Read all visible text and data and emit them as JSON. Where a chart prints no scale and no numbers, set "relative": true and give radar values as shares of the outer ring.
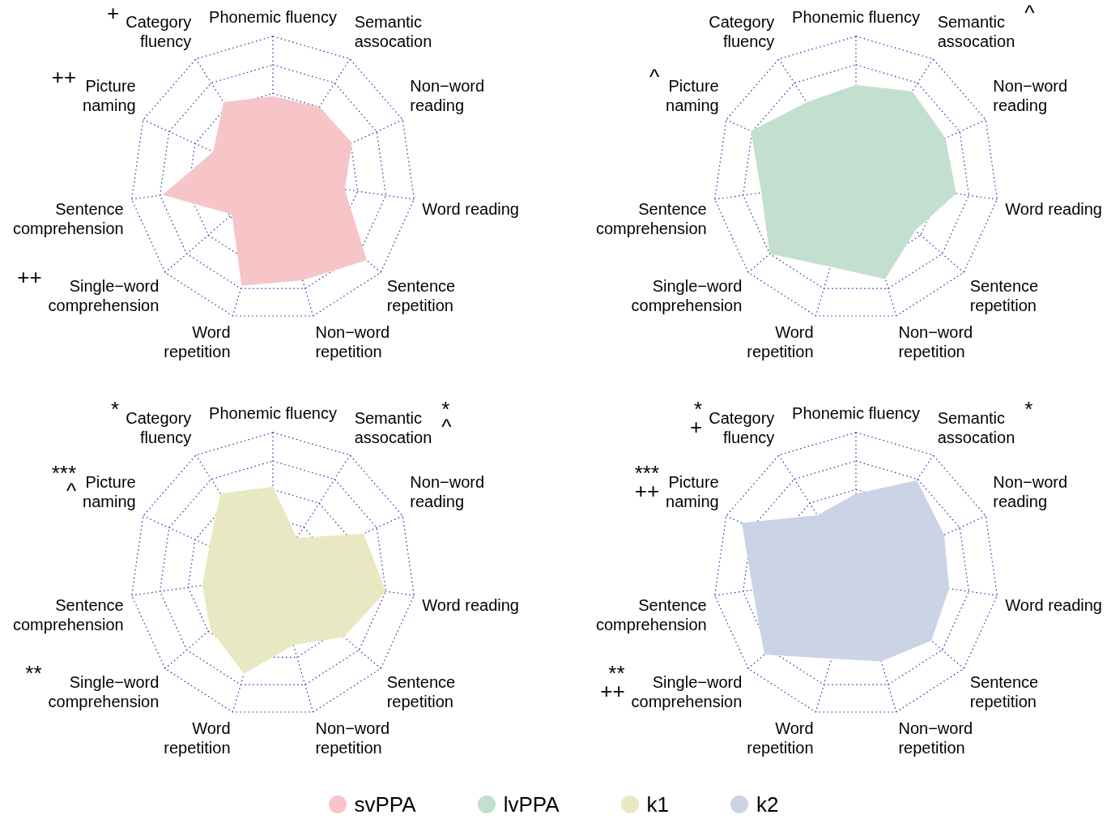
{
  "chart_data": [
    {
      "type": "radar",
      "relative": true,
      "legend": "bottom",
      "marker": "none",
      "grid": true,
      "categories": [
        "Phonemic fluency",
        "Semantic\nassocation",
        "Non−word\nreading",
        "Word reading",
        "Sentence\nrepetition",
        "Non−word\nrepetition",
        "Word\nrepetition",
        "Single−word\ncomprehension",
        "Sentence\ncomprehension",
        "Picture\nnaming",
        "Category\nfluency"
      ],
      "series": [
        {
          "name": "svPPA",
          "color": "#f7c5c7",
          "values": [
            0.58,
            0.6,
            0.61,
            0.51,
            0.87,
            0.74,
            0.78,
            0.38,
            0.78,
            0.46,
            0.64
          ]
        }
      ],
      "annotations": [
        {
          "text": "+",
          "x": "Category\nfluency"
        },
        {
          "text": "++",
          "x": "Picture\nnaming"
        },
        {
          "text": "++",
          "x": "Single−word\ncomprehension"
        }
      ]
    },
    {
      "type": "radar",
      "relative": true,
      "legend": "bottom",
      "marker": "none",
      "grid": true,
      "categories": [
        "Phonemic fluency",
        "Semantic\nassocation",
        "Non−word\nreading",
        "Word reading",
        "Sentence\nrepetition",
        "Non−word\nrepetition",
        "Word\nrepetition",
        "Single−word\ncomprehension",
        "Sentence\ncomprehension",
        "Picture\nnaming",
        "Category\nfluency"
      ],
      "series": [
        {
          "name": "lvPPA",
          "color": "#c3dfd0",
          "values": [
            0.66,
            0.73,
            0.69,
            0.71,
            0.55,
            0.73,
            0.64,
            0.8,
            0.67,
            0.81,
            0.64
          ]
        }
      ],
      "annotations": [
        {
          "text": "^",
          "x": "Semantic\nassocation"
        },
        {
          "text": "^",
          "x": "Picture\nnaming"
        }
      ]
    },
    {
      "type": "radar",
      "relative": true,
      "legend": "bottom",
      "marker": "none",
      "grid": true,
      "categories": [
        "Phonemic fluency",
        "Semantic\nassocation",
        "Non−word\nreading",
        "Word reading",
        "Sentence\nrepetition",
        "Non−word\nrepetition",
        "Word\nrepetition",
        "Single−word\ncomprehension",
        "Sentence\ncomprehension",
        "Picture\nnaming",
        "Category\nfluency"
      ],
      "series": [
        {
          "name": "k1",
          "color": "#e8e9c2",
          "values": [
            0.62,
            0.31,
            0.7,
            0.8,
            0.66,
            0.51,
            0.72,
            0.58,
            0.5,
            0.49,
            0.68
          ]
        }
      ],
      "annotations": [
        {
          "text": "*",
          "x": "Category\nfluency"
        },
        {
          "text": "*",
          "x": "Semantic\nassocation"
        },
        {
          "text": "^",
          "x": "Semantic\nassocation"
        },
        {
          "text": "***",
          "x": "Picture\nnaming"
        },
        {
          "text": "^",
          "x": "Picture\nnaming"
        },
        {
          "text": "**",
          "x": "Single−word\ncomprehension"
        }
      ]
    },
    {
      "type": "radar",
      "relative": true,
      "legend": "bottom",
      "marker": "none",
      "grid": true,
      "categories": [
        "Phonemic fluency",
        "Semantic\nassocation",
        "Non−word\nreading",
        "Word reading",
        "Sentence\nrepetition",
        "Non−word\nrepetition",
        "Word\nrepetition",
        "Single−word\ncomprehension",
        "Sentence\ncomprehension",
        "Picture\nnaming",
        "Category\nfluency"
      ],
      "series": [
        {
          "name": "k2",
          "color": "#cbd3e6",
          "values": [
            0.57,
            0.79,
            0.68,
            0.66,
            0.7,
            0.63,
            0.61,
            0.85,
            0.73,
            0.88,
            0.5
          ]
        }
      ],
      "annotations": [
        {
          "text": "*",
          "x": "Category\nfluency"
        },
        {
          "text": "+",
          "x": "Category\nfluency"
        },
        {
          "text": "*",
          "x": "Semantic\nassocation"
        },
        {
          "text": "***",
          "x": "Picture\nnaming"
        },
        {
          "text": "++",
          "x": "Picture\nnaming"
        },
        {
          "text": "**",
          "x": "Single−word\ncomprehension"
        },
        {
          "text": "++",
          "x": "Single−word\ncomprehension"
        }
      ]
    }
  ]
}
